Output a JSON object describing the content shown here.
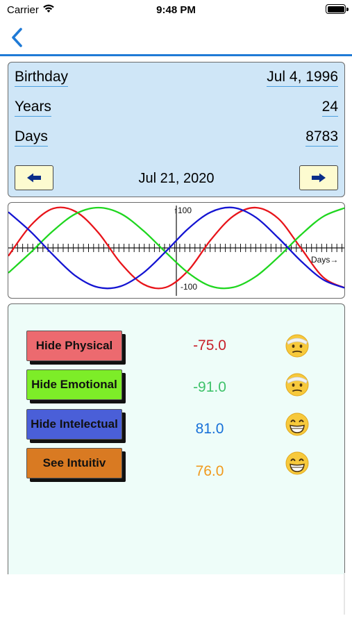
{
  "status_bar": {
    "carrier": "Carrier",
    "time": "9:48 PM"
  },
  "nav": {
    "back_icon": "chevron-left-icon",
    "accent": "#1f7ad6"
  },
  "info": {
    "birthday_label": "Birthday",
    "birthday_value": "Jul 4, 1996",
    "years_label": "Years",
    "years_value": "24",
    "days_label": "Days",
    "days_value": "8783",
    "current_date": "Jul 21, 2020",
    "prev_icon": "arrow-left-icon",
    "next_icon": "arrow-right-icon"
  },
  "chart_data": {
    "type": "line",
    "y_max_label": "↑100",
    "y_min_label": "-100",
    "x_axis_label": "Days→",
    "ylim": [
      -100,
      100
    ],
    "grid": false,
    "series": [
      {
        "color": "#e8141a",
        "values": [
          -20,
          56,
          98,
          90,
          38,
          -38,
          -90,
          -98,
          -56,
          20,
          79,
          100,
          73,
          0,
          -73,
          -100
        ]
      },
      {
        "color": "#1fd61f",
        "values": [
          -62,
          -11,
          43,
          85,
          100,
          85,
          43,
          -11,
          -62,
          -95,
          -98,
          -71,
          -23,
          32,
          78,
          100
        ]
      },
      {
        "color": "#1414d2",
        "values": [
          89,
          40,
          -18,
          -70,
          -98,
          -95,
          -62,
          -9,
          48,
          89,
          100,
          76,
          25,
          -32,
          -79,
          -100
        ]
      }
    ]
  },
  "cycles": [
    {
      "label": "Hide Physical",
      "value": "-75.0",
      "button_color": "#ec6a6f",
      "value_color": "#c8202a",
      "face": "face-with-head-bandage-icon"
    },
    {
      "label": "Hide Emotional",
      "value": "-91.0",
      "button_color": "#7ded28",
      "value_color": "#3ec26a",
      "face": "face-with-head-bandage-icon"
    },
    {
      "label": "Hide Intelectual",
      "value": "81.0",
      "button_color": "#4a5fd8",
      "value_color": "#1670d8",
      "face": "grinning-face-icon"
    },
    {
      "label": "See Intuitiv",
      "value": "76.0",
      "button_color": "#d97a22",
      "value_color": "#f09a1e",
      "face": "grinning-face-icon"
    }
  ]
}
